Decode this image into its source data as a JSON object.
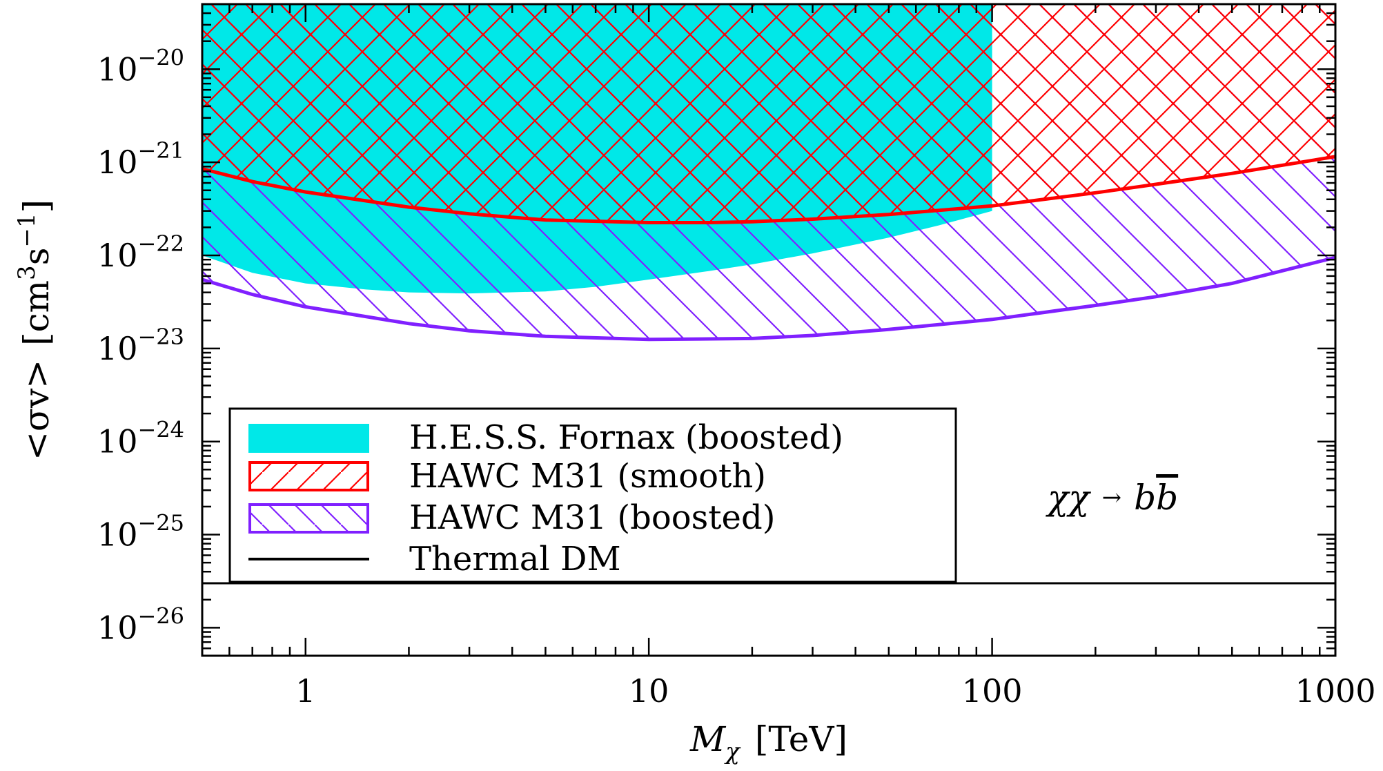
{
  "chart_data": {
    "type": "area",
    "x_scale": "log",
    "y_scale": "log",
    "xlim": [
      0.5,
      1000
    ],
    "ylim": [
      5e-27,
      5e-20
    ],
    "grid": false,
    "xlabel": {
      "symbol": "M",
      "subscript": "χ",
      "unit": "[TeV]"
    },
    "ylabel": {
      "text": "<σv>",
      "unit_open": "[cm",
      "unit_exp1": "3",
      "unit_mid": "s",
      "unit_exp2": "−1",
      "unit_close": "]"
    },
    "x_ticks": [
      {
        "value": 1,
        "label": "1"
      },
      {
        "value": 10,
        "label": "10"
      },
      {
        "value": 100,
        "label": "100"
      },
      {
        "value": 1000,
        "label": "1000"
      }
    ],
    "y_ticks": [
      {
        "value": 1e-20,
        "base": "10",
        "exp": "−20"
      },
      {
        "value": 1e-21,
        "base": "10",
        "exp": "−21"
      },
      {
        "value": 1e-22,
        "base": "10",
        "exp": "−22"
      },
      {
        "value": 1e-23,
        "base": "10",
        "exp": "−23"
      },
      {
        "value": 1e-24,
        "base": "10",
        "exp": "−24"
      },
      {
        "value": 1e-25,
        "base": "10",
        "exp": "−25"
      },
      {
        "value": 1e-26,
        "base": "10",
        "exp": "−26"
      }
    ],
    "series": [
      {
        "name": "H.E.S.S. Fornax (boosted)",
        "style": "filled",
        "color": "#00e8e8",
        "x": [
          0.5,
          0.7,
          1,
          1.5,
          2,
          3,
          5,
          7,
          10,
          15,
          20,
          30,
          50,
          70,
          100
        ],
        "lower": [
          1e-22,
          6.5e-23,
          5e-23,
          4.3e-23,
          4e-23,
          3.9e-23,
          4.1e-23,
          4.6e-23,
          5.5e-23,
          6.8e-23,
          8e-23,
          1.05e-22,
          1.55e-22,
          2.1e-22,
          3e-22
        ],
        "xmax": 100
      },
      {
        "name": "HAWC M31 (smooth)",
        "style": "hatched",
        "color": "#ff0000",
        "hatch": "crosshatch",
        "x": [
          0.5,
          0.7,
          1,
          2,
          3,
          5,
          10,
          15,
          20,
          30,
          50,
          100,
          200,
          300,
          500,
          1000
        ],
        "lower": [
          8.5e-22,
          6.2e-22,
          4.8e-22,
          3.3e-22,
          2.8e-22,
          2.4e-22,
          2.25e-22,
          2.25e-22,
          2.3e-22,
          2.45e-22,
          2.75e-22,
          3.4e-22,
          4.7e-22,
          5.8e-22,
          7.6e-22,
          1.15e-21
        ]
      },
      {
        "name": "HAWC M31 (boosted)",
        "style": "hatched",
        "color": "#8020ff",
        "hatch": "diagonal",
        "x": [
          0.5,
          0.7,
          1,
          2,
          3,
          5,
          10,
          20,
          30,
          50,
          100,
          200,
          300,
          500,
          1000
        ],
        "lower": [
          5.5e-23,
          3.8e-23,
          2.8e-23,
          1.85e-23,
          1.55e-23,
          1.35e-23,
          1.25e-23,
          1.28e-23,
          1.38e-23,
          1.6e-23,
          2.05e-23,
          2.9e-23,
          3.6e-23,
          5e-23,
          9.5e-23
        ]
      },
      {
        "name": "Thermal DM",
        "style": "line",
        "color": "#000000",
        "x": [
          0.5,
          1000
        ],
        "y": [
          3e-26,
          3e-26
        ]
      }
    ],
    "legend_position": "center-left",
    "annotation": {
      "pre": "χχ",
      "arrow": "→",
      "post": "bb",
      "post_bar": "b"
    }
  }
}
